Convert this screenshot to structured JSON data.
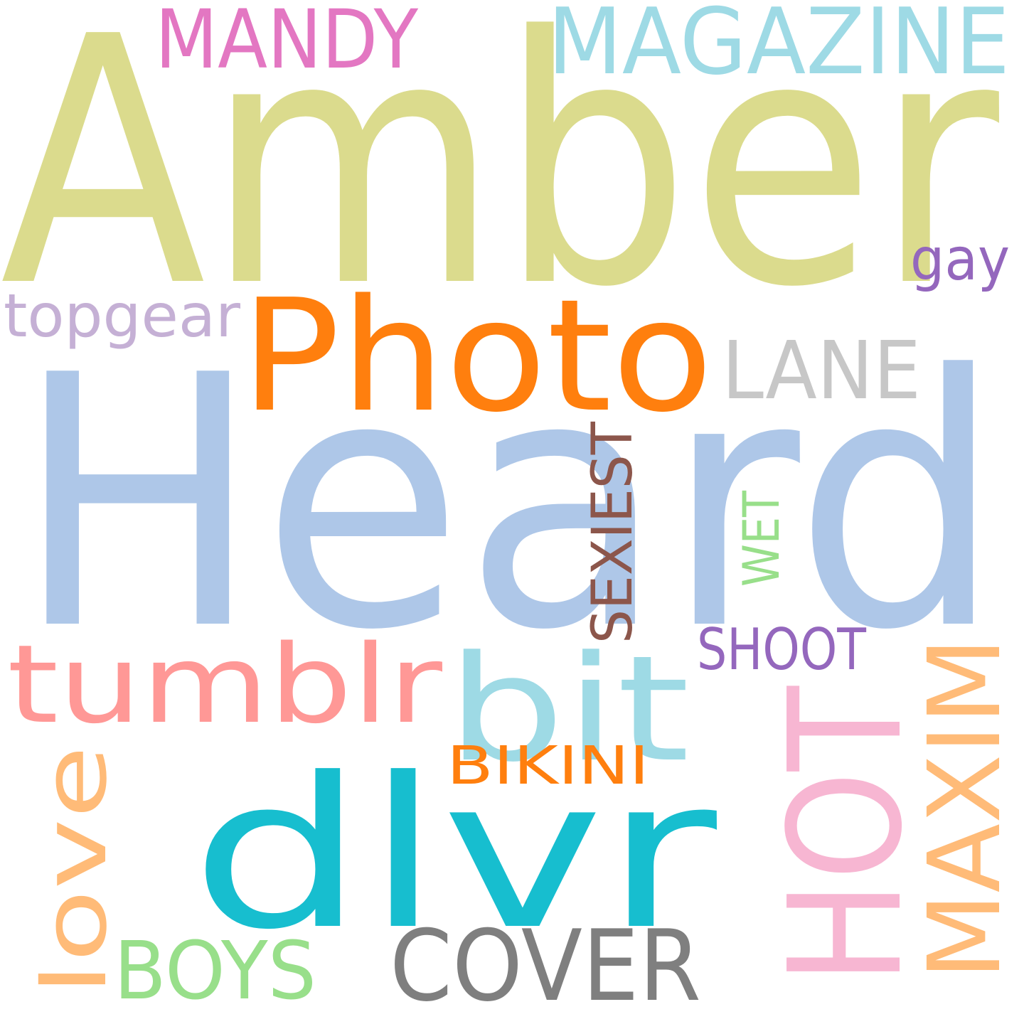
{
  "word_cloud": {
    "words": [
      {
        "id": "amber",
        "text": "Amber",
        "color": "#dbdb8d"
      },
      {
        "id": "heard",
        "text": "Heard",
        "color": "#aec7e8"
      },
      {
        "id": "photo",
        "text": "Photo",
        "color": "#ff7f0e"
      },
      {
        "id": "magazine",
        "text": "MAGAZINE",
        "color": "#9edae5"
      },
      {
        "id": "mandy",
        "text": "MANDY",
        "color": "#e377c2"
      },
      {
        "id": "gay",
        "text": "gay",
        "color": "#9467bd"
      },
      {
        "id": "topgear",
        "text": "topgear",
        "color": "#c5b0d5"
      },
      {
        "id": "lane",
        "text": "LANE",
        "color": "#c7c7c7"
      },
      {
        "id": "sexiest",
        "text": "SEXIEST",
        "color": "#8c564b"
      },
      {
        "id": "wet",
        "text": "WET",
        "color": "#98df8a"
      },
      {
        "id": "tumblr",
        "text": "tumblr",
        "color": "#ff9896"
      },
      {
        "id": "bit",
        "text": "bit",
        "color": "#9edae5"
      },
      {
        "id": "shoot",
        "text": "SHOOT",
        "color": "#9467bd"
      },
      {
        "id": "hot",
        "text": "HOT",
        "color": "#f7b6d2"
      },
      {
        "id": "maxim",
        "text": "MAXIM",
        "color": "#ffbb78"
      },
      {
        "id": "bikini",
        "text": "BIKINI",
        "color": "#ff7f0e"
      },
      {
        "id": "love",
        "text": "love",
        "color": "#ffbb78"
      },
      {
        "id": "dlvr",
        "text": "dlvr",
        "color": "#17becf"
      },
      {
        "id": "boys",
        "text": "BOYS",
        "color": "#98df8a"
      },
      {
        "id": "cover",
        "text": "COVER",
        "color": "#7f7f7f"
      }
    ]
  }
}
